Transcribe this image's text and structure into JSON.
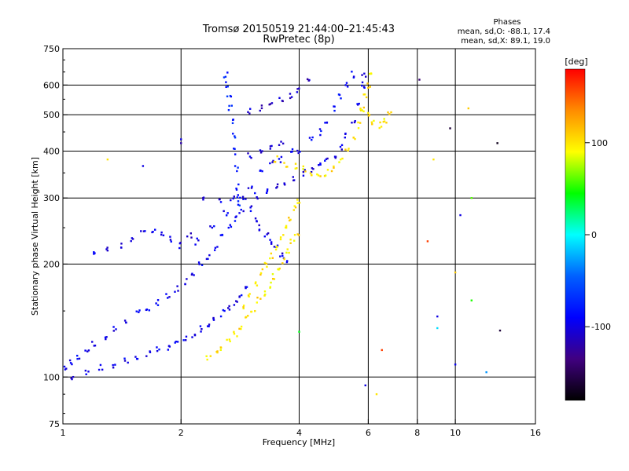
{
  "chart_data": {
    "type": "scatter",
    "title": "Tromsø 20150519 21:44:00–21:45:43",
    "subtitle": "RwPretec (8p)",
    "xlabel": "Frequency [MHz]",
    "ylabel": "Stationary phase Virtual Height [km]",
    "x_scale": "log",
    "y_scale": "log",
    "xlim": [
      1,
      16
    ],
    "ylim": [
      75,
      750
    ],
    "x_ticks": [
      1,
      2,
      4,
      6,
      8,
      10,
      16
    ],
    "x_tick_labels": [
      "1",
      "2",
      "4",
      "6",
      "8",
      "10",
      "16"
    ],
    "y_ticks": [
      75,
      100,
      200,
      300,
      400,
      500,
      600,
      750
    ],
    "y_tick_labels": [
      "75",
      "100",
      "200",
      "300",
      "400",
      "500",
      "600",
      "750"
    ],
    "grid": true,
    "phases_box": {
      "heading": "Phases",
      "line1": "mean, sd,O: -88.1, 17.4",
      "line2": "mean, sd,X:  89.1, 19.0"
    },
    "colorbar": {
      "label": "[deg]",
      "range": [
        -180,
        180
      ],
      "ticks": [
        100,
        0,
        -100
      ],
      "tick_labels": [
        "100",
        "0",
        "-100"
      ],
      "colors": [
        "#ff0000",
        "#ff8c00",
        "#ffff00",
        "#00ff00",
        "#00ffff",
        "#0060ff",
        "#0000ff",
        "#400080",
        "#000000"
      ]
    },
    "series": [
      {
        "phase": -95,
        "points": [
          [
            1.02,
            105
          ],
          [
            1.05,
            110
          ],
          [
            1.1,
            112
          ],
          [
            1.15,
            118
          ],
          [
            1.2,
            122
          ],
          [
            1.28,
            128
          ],
          [
            1.35,
            135
          ],
          [
            1.45,
            140
          ],
          [
            1.55,
            148
          ],
          [
            1.65,
            152
          ],
          [
            1.75,
            158
          ],
          [
            1.85,
            165
          ],
          [
            1.95,
            172
          ],
          [
            2.05,
            180
          ],
          [
            2.15,
            190
          ],
          [
            2.25,
            200
          ],
          [
            2.35,
            210
          ],
          [
            2.45,
            222
          ],
          [
            2.55,
            235
          ],
          [
            2.65,
            250
          ],
          [
            2.75,
            265
          ],
          [
            2.85,
            275
          ]
        ]
      },
      {
        "phase": -95,
        "points": [
          [
            1.05,
            100
          ],
          [
            1.15,
            103
          ],
          [
            1.25,
            106
          ],
          [
            1.35,
            108
          ],
          [
            1.45,
            111
          ],
          [
            1.55,
            113
          ],
          [
            1.65,
            115
          ],
          [
            1.75,
            118
          ],
          [
            1.85,
            120
          ],
          [
            1.95,
            124
          ],
          [
            2.05,
            126
          ],
          [
            2.15,
            130
          ],
          [
            2.25,
            134
          ],
          [
            2.35,
            138
          ],
          [
            2.45,
            143
          ],
          [
            2.55,
            148
          ],
          [
            2.65,
            152
          ],
          [
            2.75,
            158
          ],
          [
            2.85,
            165
          ],
          [
            2.95,
            175
          ]
        ]
      },
      {
        "phase": -100,
        "points": [
          [
            1.2,
            215
          ],
          [
            1.3,
            218
          ],
          [
            1.4,
            225
          ],
          [
            1.5,
            235
          ],
          [
            1.6,
            242
          ],
          [
            1.7,
            245
          ],
          [
            1.8,
            240
          ],
          [
            1.9,
            232
          ],
          [
            2.0,
            225
          ],
          [
            2.1,
            240
          ]
        ]
      },
      {
        "phase": -100,
        "points": [
          [
            2.3,
            300
          ],
          [
            2.5,
            295
          ],
          [
            2.7,
            298
          ],
          [
            2.9,
            300
          ],
          [
            3.1,
            305
          ],
          [
            3.3,
            312
          ],
          [
            3.5,
            320
          ],
          [
            3.7,
            330
          ],
          [
            3.9,
            340
          ],
          [
            4.1,
            350
          ],
          [
            4.3,
            358
          ],
          [
            4.5,
            365
          ],
          [
            4.7,
            375
          ],
          [
            4.9,
            390
          ],
          [
            5.1,
            410
          ],
          [
            5.3,
            440
          ],
          [
            5.5,
            480
          ],
          [
            5.7,
            540
          ],
          [
            5.8,
            600
          ],
          [
            5.85,
            640
          ]
        ]
      },
      {
        "phase": -90,
        "points": [
          [
            4.3,
            430
          ],
          [
            4.5,
            450
          ],
          [
            4.7,
            480
          ],
          [
            4.9,
            520
          ],
          [
            5.1,
            560
          ],
          [
            5.3,
            600
          ],
          [
            5.45,
            640
          ]
        ]
      },
      {
        "phase": -100,
        "points": [
          [
            3.0,
            390
          ],
          [
            3.2,
            400
          ],
          [
            3.4,
            410
          ],
          [
            3.6,
            420
          ],
          [
            3.8,
            405
          ],
          [
            4.0,
            395
          ]
        ]
      },
      {
        "phase": -110,
        "points": [
          [
            3.0,
            510
          ],
          [
            3.2,
            520
          ],
          [
            3.4,
            530
          ],
          [
            3.6,
            545
          ],
          [
            3.8,
            560
          ],
          [
            4.0,
            580
          ],
          [
            4.2,
            610
          ]
        ]
      },
      {
        "phase": -95,
        "points": [
          [
            2.2,
            230
          ],
          [
            2.4,
            255
          ],
          [
            2.6,
            275
          ],
          [
            2.8,
            300
          ],
          [
            3.0,
            325
          ],
          [
            3.2,
            350
          ],
          [
            3.4,
            370
          ],
          [
            3.6,
            380
          ]
        ]
      },
      {
        "phase": -75,
        "points": [
          [
            2.6,
            640
          ],
          [
            2.62,
            600
          ],
          [
            2.65,
            560
          ],
          [
            2.67,
            520
          ],
          [
            2.7,
            480
          ],
          [
            2.72,
            440
          ],
          [
            2.75,
            400
          ],
          [
            2.77,
            360
          ],
          [
            2.8,
            320
          ],
          [
            2.82,
            290
          ]
        ]
      },
      {
        "phase": -100,
        "points": [
          [
            3.0,
            280
          ],
          [
            3.1,
            260
          ],
          [
            3.2,
            250
          ],
          [
            3.3,
            240
          ],
          [
            3.4,
            230
          ],
          [
            3.5,
            220
          ],
          [
            3.6,
            210
          ],
          [
            3.7,
            205
          ]
        ]
      },
      {
        "phase": 100,
        "points": [
          [
            2.35,
            113
          ],
          [
            2.45,
            116
          ],
          [
            2.55,
            119
          ],
          [
            2.65,
            124
          ],
          [
            2.75,
            130
          ],
          [
            2.85,
            137
          ],
          [
            2.95,
            145
          ],
          [
            3.05,
            152
          ],
          [
            3.15,
            160
          ],
          [
            3.25,
            168
          ],
          [
            3.35,
            176
          ],
          [
            3.45,
            185
          ],
          [
            3.55,
            195
          ],
          [
            3.65,
            205
          ],
          [
            3.75,
            215
          ],
          [
            3.85,
            228
          ],
          [
            3.95,
            240
          ]
        ]
      },
      {
        "phase": 100,
        "points": [
          [
            2.9,
            155
          ],
          [
            3.0,
            165
          ],
          [
            3.1,
            178
          ],
          [
            3.2,
            190
          ],
          [
            3.3,
            200
          ],
          [
            3.4,
            210
          ],
          [
            3.5,
            222
          ],
          [
            3.6,
            235
          ],
          [
            3.7,
            250
          ],
          [
            3.8,
            265
          ],
          [
            3.9,
            280
          ],
          [
            4.0,
            295
          ]
        ]
      },
      {
        "phase": 100,
        "points": [
          [
            3.5,
            380
          ],
          [
            3.7,
            370
          ],
          [
            3.9,
            365
          ],
          [
            4.1,
            360
          ],
          [
            4.3,
            350
          ],
          [
            4.5,
            345
          ],
          [
            4.7,
            350
          ],
          [
            4.9,
            360
          ],
          [
            5.1,
            375
          ],
          [
            5.3,
            400
          ],
          [
            5.5,
            430
          ],
          [
            5.7,
            470
          ],
          [
            5.8,
            520
          ],
          [
            5.9,
            560
          ],
          [
            6.0,
            600
          ],
          [
            6.1,
            640
          ]
        ]
      },
      {
        "phase": 100,
        "points": [
          [
            5.8,
            520
          ],
          [
            6.0,
            500
          ],
          [
            6.2,
            480
          ],
          [
            6.4,
            470
          ],
          [
            6.6,
            480
          ],
          [
            6.8,
            500
          ]
        ]
      }
    ],
    "scattered_points": [
      [
        1.3,
        380,
        100
      ],
      [
        1.6,
        365,
        -100
      ],
      [
        2.0,
        430,
        -100
      ],
      [
        2.0,
        420,
        -120
      ],
      [
        8.1,
        620,
        -140
      ],
      [
        8.8,
        380,
        100
      ],
      [
        8.5,
        230,
        160
      ],
      [
        9.7,
        460,
        -160
      ],
      [
        10.3,
        270,
        -100
      ],
      [
        10.8,
        520,
        110
      ],
      [
        11.0,
        300,
        60
      ],
      [
        12.8,
        420,
        -170
      ],
      [
        9.0,
        135,
        -10
      ],
      [
        10.0,
        108,
        -95
      ],
      [
        12.0,
        103,
        -30
      ],
      [
        13.0,
        133,
        -160
      ],
      [
        6.5,
        118,
        160
      ],
      [
        6.3,
        90,
        100
      ],
      [
        5.9,
        95,
        -100
      ],
      [
        4.0,
        132,
        40
      ],
      [
        9.0,
        145,
        -100
      ],
      [
        10.0,
        190,
        110
      ],
      [
        11.0,
        160,
        50
      ],
      [
        5.8,
        610,
        -100
      ],
      [
        6.6,
        480,
        100
      ]
    ]
  }
}
